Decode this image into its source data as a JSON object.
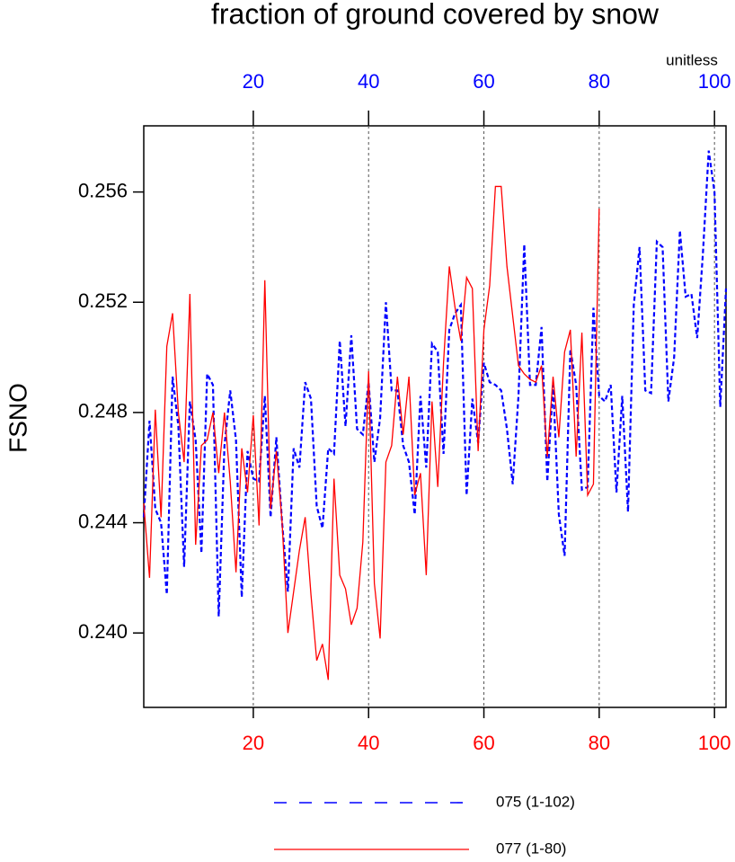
{
  "chart_data": {
    "type": "line",
    "title": "fraction of ground covered by snow",
    "ylabel": "FSNO",
    "units_label": "unitless",
    "xlim": [
      1,
      102
    ],
    "ylim": [
      0.2373,
      0.2584
    ],
    "xticks": [
      20,
      40,
      60,
      80,
      100
    ],
    "yticks": [
      {
        "value": 0.24,
        "label": "0.240"
      },
      {
        "value": 0.244,
        "label": "0.244"
      },
      {
        "value": 0.248,
        "label": "0.248"
      },
      {
        "value": 0.252,
        "label": "0.252"
      },
      {
        "value": 0.256,
        "label": "0.256"
      }
    ],
    "top_xtick_color": "#0000ff",
    "bottom_xtick_color": "#ff0000",
    "grid": true,
    "series": [
      {
        "name": "075 (1-102)",
        "color": "#0000ff",
        "line_style": "dashed",
        "x": [
          1,
          2,
          3,
          4,
          5,
          6,
          7,
          8,
          9,
          10,
          11,
          12,
          13,
          14,
          15,
          16,
          17,
          18,
          19,
          20,
          21,
          22,
          23,
          24,
          25,
          26,
          27,
          28,
          29,
          30,
          31,
          32,
          33,
          34,
          35,
          36,
          37,
          38,
          39,
          40,
          41,
          42,
          43,
          44,
          45,
          46,
          47,
          48,
          49,
          50,
          51,
          52,
          53,
          54,
          55,
          56,
          57,
          58,
          59,
          60,
          61,
          62,
          63,
          64,
          65,
          66,
          67,
          68,
          69,
          70,
          71,
          72,
          73,
          74,
          75,
          76,
          77,
          78,
          79,
          80,
          81,
          82,
          83,
          84,
          85,
          86,
          87,
          88,
          89,
          90,
          91,
          92,
          93,
          94,
          95,
          96,
          97,
          98,
          99,
          100,
          101,
          102
        ],
        "values": [
          0.2442,
          0.2477,
          0.2445,
          0.244,
          0.2414,
          0.2493,
          0.2475,
          0.2424,
          0.2484,
          0.247,
          0.2429,
          0.2494,
          0.249,
          0.2406,
          0.2468,
          0.2488,
          0.247,
          0.2413,
          0.2466,
          0.2456,
          0.2455,
          0.2486,
          0.2442,
          0.2471,
          0.244,
          0.2415,
          0.2467,
          0.246,
          0.2491,
          0.2485,
          0.2446,
          0.2438,
          0.2467,
          0.2465,
          0.2506,
          0.2475,
          0.2508,
          0.2474,
          0.2472,
          0.2491,
          0.2462,
          0.2478,
          0.252,
          0.2488,
          0.2488,
          0.2468,
          0.2462,
          0.2443,
          0.2486,
          0.246,
          0.2505,
          0.2502,
          0.2465,
          0.251,
          0.2516,
          0.2519,
          0.245,
          0.2485,
          0.2469,
          0.2498,
          0.2491,
          0.249,
          0.2488,
          0.2474,
          0.2454,
          0.2486,
          0.2541,
          0.249,
          0.249,
          0.2511,
          0.2455,
          0.249,
          0.2443,
          0.2428,
          0.2503,
          0.249,
          0.2452,
          0.2453,
          0.2518,
          0.2486,
          0.2484,
          0.249,
          0.2451,
          0.2486,
          0.2444,
          0.2519,
          0.254,
          0.2488,
          0.2487,
          0.2542,
          0.254,
          0.2484,
          0.25,
          0.2546,
          0.2522,
          0.2523,
          0.2507,
          0.2538,
          0.2575,
          0.256,
          0.2482,
          0.2525
        ]
      },
      {
        "name": "077 (1-80)",
        "color": "#ff0000",
        "line_style": "solid",
        "x": [
          1,
          2,
          3,
          4,
          5,
          6,
          7,
          8,
          9,
          10,
          11,
          12,
          13,
          14,
          15,
          16,
          17,
          18,
          19,
          20,
          21,
          22,
          23,
          24,
          25,
          26,
          27,
          28,
          29,
          30,
          31,
          32,
          33,
          34,
          35,
          36,
          37,
          38,
          39,
          40,
          41,
          42,
          43,
          44,
          45,
          46,
          47,
          48,
          49,
          50,
          51,
          52,
          53,
          54,
          55,
          56,
          57,
          58,
          59,
          60,
          61,
          62,
          63,
          64,
          65,
          66,
          67,
          68,
          69,
          70,
          71,
          72,
          73,
          74,
          75,
          76,
          77,
          78,
          79,
          80
        ],
        "values": [
          0.2447,
          0.242,
          0.2481,
          0.2442,
          0.2504,
          0.2516,
          0.248,
          0.2462,
          0.2523,
          0.2432,
          0.2468,
          0.247,
          0.248,
          0.2458,
          0.248,
          0.2455,
          0.2422,
          0.2467,
          0.2451,
          0.2479,
          0.2439,
          0.2528,
          0.2445,
          0.2466,
          0.244,
          0.24,
          0.2415,
          0.243,
          0.2442,
          0.2414,
          0.239,
          0.2396,
          0.2383,
          0.2456,
          0.2421,
          0.2416,
          0.2403,
          0.2409,
          0.2433,
          0.2495,
          0.2418,
          0.2398,
          0.2462,
          0.2468,
          0.2493,
          0.2472,
          0.2493,
          0.245,
          0.2458,
          0.2421,
          0.2484,
          0.2453,
          0.2498,
          0.2533,
          0.2518,
          0.2506,
          0.2529,
          0.2525,
          0.2466,
          0.251,
          0.2526,
          0.2562,
          0.2562,
          0.2533,
          0.2515,
          0.2497,
          0.2494,
          0.2492,
          0.2491,
          0.2497,
          0.2464,
          0.2493,
          0.2471,
          0.2502,
          0.251,
          0.2464,
          0.2509,
          0.245,
          0.2454,
          0.2554
        ]
      }
    ]
  }
}
